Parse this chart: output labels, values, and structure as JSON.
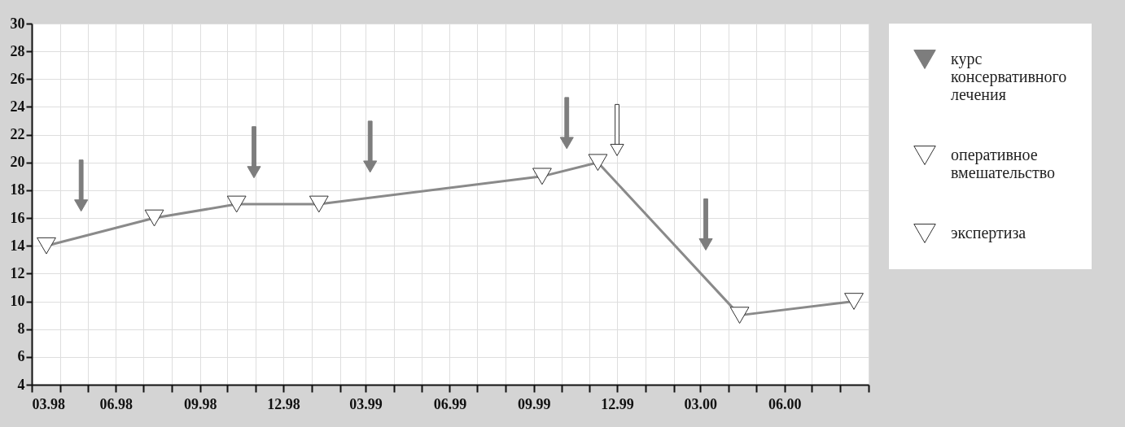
{
  "chart_data": {
    "type": "line",
    "xlim": [
      "1998-03-01",
      "2000-09-01"
    ],
    "xticks": [
      {
        "value": "1998-03-01",
        "label": "03.98"
      },
      {
        "value": "1998-04-01",
        "label": null
      },
      {
        "value": "1998-05-01",
        "label": null
      },
      {
        "value": "1998-06-01",
        "label": "06.98"
      },
      {
        "value": "1998-07-01",
        "label": null
      },
      {
        "value": "1998-08-01",
        "label": null
      },
      {
        "value": "1998-09-01",
        "label": "09.98"
      },
      {
        "value": "1998-10-01",
        "label": null
      },
      {
        "value": "1998-11-01",
        "label": null
      },
      {
        "value": "1998-12-01",
        "label": "12.98"
      },
      {
        "value": "1999-01-01",
        "label": null
      },
      {
        "value": "1999-02-01",
        "label": null
      },
      {
        "value": "1999-03-01",
        "label": "03.99"
      },
      {
        "value": "1999-04-01",
        "label": null
      },
      {
        "value": "1999-05-01",
        "label": null
      },
      {
        "value": "1999-06-01",
        "label": "06.99"
      },
      {
        "value": "1999-07-01",
        "label": null
      },
      {
        "value": "1999-08-01",
        "label": null
      },
      {
        "value": "1999-09-01",
        "label": "09.99"
      },
      {
        "value": "1999-10-01",
        "label": null
      },
      {
        "value": "1999-11-01",
        "label": null
      },
      {
        "value": "1999-12-01",
        "label": "12.99"
      },
      {
        "value": "2000-01-01",
        "label": null
      },
      {
        "value": "2000-02-01",
        "label": null
      },
      {
        "value": "2000-03-01",
        "label": "03.00"
      },
      {
        "value": "2000-04-01",
        "label": null
      },
      {
        "value": "2000-05-01",
        "label": null
      },
      {
        "value": "2000-06-01",
        "label": "06.00"
      },
      {
        "value": "2000-07-01",
        "label": null
      },
      {
        "value": "2000-08-01",
        "label": null
      },
      {
        "value": "2000-09-01",
        "label": null
      }
    ],
    "ylim": [
      4,
      30
    ],
    "yticks": [
      4,
      6,
      8,
      10,
      12,
      14,
      16,
      18,
      20,
      22,
      24,
      26,
      28,
      30
    ],
    "grid": true,
    "legend": "right",
    "marker": "triangle",
    "series": [
      {
        "name": "курс консервативного лечения",
        "type": "scatter",
        "color": "#7d7d7d",
        "x": [
          "1998-04-24",
          "1998-10-30",
          "1999-03-06",
          "1999-10-07",
          "2000-03-07"
        ],
        "values": [
          16.9,
          19.3,
          19.7,
          21.4,
          14.1
        ]
      },
      {
        "name": "оперативное вмешательство",
        "type": "scatter",
        "color": "#ffffff",
        "x": [
          "1999-12-01"
        ],
        "values": [
          20.9
        ]
      },
      {
        "name": "экспертиза",
        "color": "#8a8a8a",
        "x": [
          "1998-03-17",
          "1998-07-13",
          "1998-10-11",
          "1999-01-09",
          "1999-09-10",
          "1999-11-10",
          "2000-04-13",
          "2000-08-16"
        ],
        "values": [
          14,
          16,
          17,
          17,
          19,
          20,
          9,
          10
        ]
      }
    ]
  }
}
